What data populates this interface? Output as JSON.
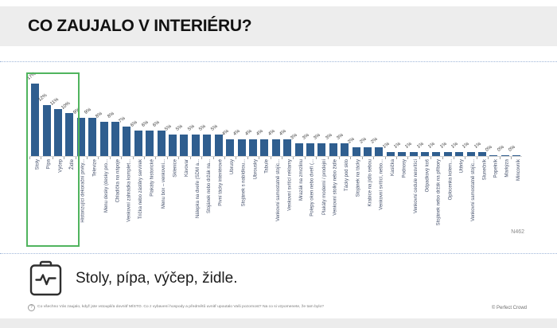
{
  "slide": {
    "title": "CO ZAUJALO V INTERIÉRU?",
    "sample_label": "N462",
    "summary_text": "Stoly, pípa, výčep, židle.",
    "footnote_text": "Co všechno Vás zaujalo, když jste vstoupil/a dovnitř MÍSTO. Co z vybavení hospody a předmětů uvnitř upoutalo Vaši pozornost? Na co si vzpomenete, že tam bylo?",
    "footnote_icon": "question-circle-icon",
    "summary_icon": "clipboard-pulse-icon",
    "copyright": "© Perfect Crowd"
  },
  "chart_data": {
    "type": "bar",
    "title": "CO ZAUJALO V INTERIÉRU?",
    "value_suffix": "%",
    "ylim": [
      0,
      17
    ],
    "grid": false,
    "bar_color": "#2f5e8f",
    "label_rotation": -90,
    "value_label_rotation": -38,
    "highlight": {
      "name": "top-4-highlight",
      "from_index": 0,
      "to_index": 3,
      "border_color": "#50b45e"
    },
    "categories": [
      "Stoly",
      "Pípa",
      "Výčep",
      "Židle",
      "Historizující dekorační prvky...",
      "Televize",
      "Menu desky (desky pro...",
      "Chladička na nápoje",
      "Venkovní zahrádka komplet...",
      "Trička nebo zástěry servírek",
      "Plakáty historické",
      "Menu box – venkovní...",
      "Sklenice",
      "Kávovar",
      "Nálepka na dveře (SDM a...",
      "Stojánek nebo držák na...",
      "Pivní tácky interiérové",
      "Ubrusy",
      "Stojánek s nabídkou...",
      "Ubrousky",
      "Tabule",
      "Venkovní samostatně stojíc...",
      "Venkovní svítící reklamy",
      "Mrazák na zmrzlinu",
      "Polepy oken nebo dveří (...",
      "Plakáty moderní / prodejní",
      "Venkovní stolky nebo židle",
      "Tácky pod sklo",
      "Stojánek na tácky",
      "Krabice na jídlo sebou",
      "Venkovní svítící, nebo...",
      "Kasička",
      "Podnosy",
      "Venkovní cedule nesvítící",
      "Odpadkový koš",
      "Stojánek nebo držák na příbory",
      "Oplocenka kolem...",
      "Utěrky",
      "Venkovní samostatně stojíc...",
      "Slunečník",
      "Popelník",
      "Markýza",
      "Mincovník"
    ],
    "values": [
      17,
      12,
      11,
      10,
      9,
      9,
      8,
      8,
      7,
      6,
      6,
      6,
      5,
      5,
      5,
      5,
      5,
      4,
      4,
      4,
      4,
      4,
      4,
      3,
      3,
      3,
      3,
      3,
      2,
      2,
      2,
      1,
      1,
      1,
      1,
      1,
      1,
      1,
      1,
      1,
      0,
      0,
      0
    ]
  }
}
